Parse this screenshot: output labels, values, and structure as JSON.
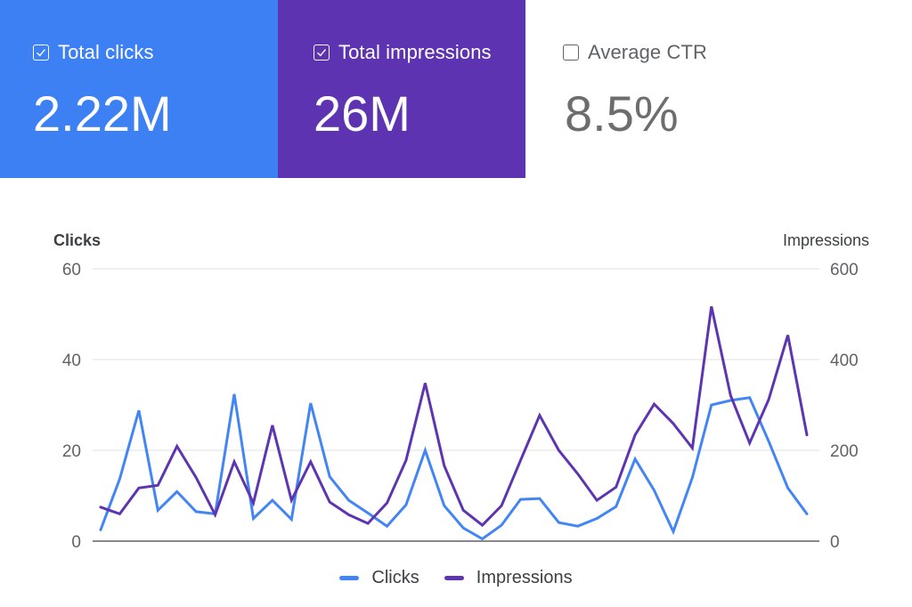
{
  "cards": [
    {
      "label": "Total clicks",
      "value": "2.22M",
      "checked": true,
      "color": "#3d80f3"
    },
    {
      "label": "Total impressions",
      "value": "26M",
      "checked": true,
      "color": "#5e33b1"
    },
    {
      "label": "Average CTR",
      "value": "8.5%",
      "checked": false,
      "color": "#ffffff"
    }
  ],
  "icons": {
    "checked": "checkbox-checked-icon",
    "unchecked": "checkbox-empty-icon"
  },
  "chart_data": {
    "type": "line",
    "title": "",
    "x": [
      1,
      2,
      3,
      4,
      5,
      6,
      7,
      8,
      9,
      10,
      11,
      12,
      13,
      14,
      15,
      16,
      17,
      18,
      19,
      20,
      21,
      22,
      23,
      24,
      25,
      26,
      27,
      28,
      29,
      30,
      31,
      32,
      33,
      34,
      35,
      36,
      37,
      38
    ],
    "series": [
      {
        "name": "Clicks",
        "axis": "left",
        "color": "#4285f4",
        "values": [
          2.5,
          13.7,
          28.8,
          6.8,
          10.9,
          6.5,
          6,
          32.4,
          5,
          9,
          4.8,
          30.4,
          14.2,
          9,
          6.2,
          3.3,
          8,
          20,
          7.8,
          2.9,
          0.5,
          3.5,
          9.2,
          9.4,
          4.1,
          3.3,
          5,
          7.6,
          18.1,
          11.2,
          2.1,
          14,
          30,
          31,
          31.6,
          22,
          11.7,
          6
        ]
      },
      {
        "name": "Impressions",
        "axis": "right",
        "color": "#5e35b1",
        "values": [
          75,
          60,
          117,
          123,
          209,
          140,
          58,
          175,
          84,
          255,
          90,
          175,
          86,
          58,
          39,
          84,
          178,
          348,
          166,
          68,
          35,
          78,
          178,
          277,
          200,
          148,
          90,
          119,
          234,
          302,
          259,
          205,
          517,
          321,
          216,
          312,
          454,
          234
        ]
      }
    ],
    "ylabel_left": "Clicks",
    "ylabel_right": "Impressions",
    "ylim_left": [
      0,
      60
    ],
    "ylim_right": [
      0,
      600
    ],
    "yticks_left": [
      "0",
      "20",
      "40",
      "60"
    ],
    "yticks_right": [
      "0",
      "200",
      "400",
      "600"
    ],
    "grid": true,
    "legend": [
      "Clicks",
      "Impressions"
    ],
    "legend_position": "bottom"
  }
}
